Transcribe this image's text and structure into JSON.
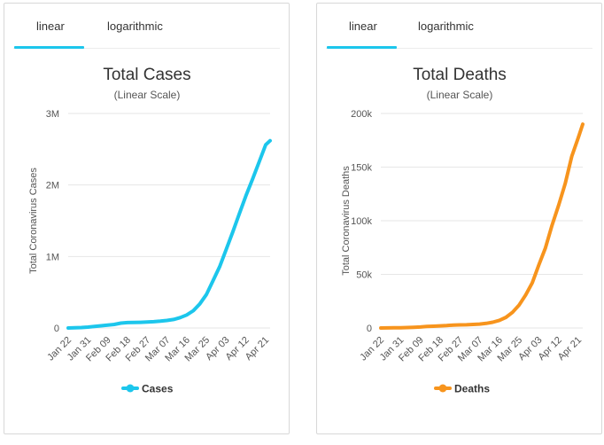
{
  "tabs": {
    "linear": "linear",
    "logarithmic": "logarithmic"
  },
  "colors": {
    "cases": "#1cc6ec",
    "deaths": "#f7941d",
    "grid": "#e6e6e6"
  },
  "chart_data": [
    {
      "type": "line",
      "title": "Total Cases",
      "subtitle": "(Linear Scale)",
      "ylabel": "Total Coronavirus Cases",
      "ylim": [
        0,
        3000000
      ],
      "yticks": [
        0,
        1000000,
        2000000,
        3000000
      ],
      "ytick_labels": [
        "0",
        "1M",
        "2M",
        "3M"
      ],
      "xtick_labels": [
        "Jan 22",
        "Jan 31",
        "Feb 09",
        "Feb 18",
        "Feb 27",
        "Mar 07",
        "Mar 16",
        "Mar 25",
        "Apr 03",
        "Apr 12",
        "Apr 21"
      ],
      "grid": true,
      "legend": "bottom",
      "series": [
        {
          "name": "Cases",
          "x": [
            "2020-01-22",
            "2020-01-25",
            "2020-01-28",
            "2020-01-31",
            "2020-02-03",
            "2020-02-06",
            "2020-02-09",
            "2020-02-12",
            "2020-02-15",
            "2020-02-18",
            "2020-02-21",
            "2020-02-24",
            "2020-02-27",
            "2020-03-01",
            "2020-03-04",
            "2020-03-07",
            "2020-03-10",
            "2020-03-13",
            "2020-03-16",
            "2020-03-19",
            "2020-03-22",
            "2020-03-25",
            "2020-03-28",
            "2020-03-31",
            "2020-04-03",
            "2020-04-06",
            "2020-04-09",
            "2020-04-12",
            "2020-04-15",
            "2020-04-18",
            "2020-04-21",
            "2020-04-23"
          ],
          "values": [
            580,
            2900,
            6000,
            11900,
            20600,
            31500,
            40500,
            49000,
            68000,
            75100,
            76800,
            79300,
            83400,
            88400,
            95300,
            105800,
            119000,
            145000,
            182000,
            242000,
            338000,
            468000,
            663000,
            857000,
            1098000,
            1345000,
            1600000,
            1850000,
            2083000,
            2322000,
            2562000,
            2620000
          ]
        }
      ]
    },
    {
      "type": "line",
      "title": "Total Deaths",
      "subtitle": "(Linear Scale)",
      "ylabel": "Total Coronavirus Deaths",
      "ylim": [
        0,
        200000
      ],
      "yticks": [
        0,
        50000,
        100000,
        150000,
        200000
      ],
      "ytick_labels": [
        "0",
        "50k",
        "100k",
        "150k",
        "200k"
      ],
      "xtick_labels": [
        "Jan 22",
        "Jan 31",
        "Feb 09",
        "Feb 18",
        "Feb 27",
        "Mar 07",
        "Mar 16",
        "Mar 25",
        "Apr 03",
        "Apr 12",
        "Apr 21"
      ],
      "grid": true,
      "legend": "bottom",
      "series": [
        {
          "name": "Deaths",
          "x": [
            "2020-01-22",
            "2020-01-25",
            "2020-01-28",
            "2020-01-31",
            "2020-02-03",
            "2020-02-06",
            "2020-02-09",
            "2020-02-12",
            "2020-02-15",
            "2020-02-18",
            "2020-02-21",
            "2020-02-24",
            "2020-02-27",
            "2020-03-01",
            "2020-03-04",
            "2020-03-07",
            "2020-03-10",
            "2020-03-13",
            "2020-03-16",
            "2020-03-19",
            "2020-03-22",
            "2020-03-25",
            "2020-03-28",
            "2020-03-31",
            "2020-04-03",
            "2020-04-06",
            "2020-04-09",
            "2020-04-12",
            "2020-04-15",
            "2020-04-18",
            "2020-04-21",
            "2020-04-23"
          ],
          "values": [
            17,
            56,
            132,
            259,
            427,
            638,
            910,
            1370,
            1670,
            2010,
            2250,
            2700,
            2860,
            3000,
            3300,
            3600,
            4300,
            5400,
            7100,
            9900,
            14600,
            21300,
            30800,
            42100,
            58800,
            74700,
            95700,
            114200,
            134600,
            160000,
            177500,
            190000
          ]
        }
      ]
    }
  ]
}
